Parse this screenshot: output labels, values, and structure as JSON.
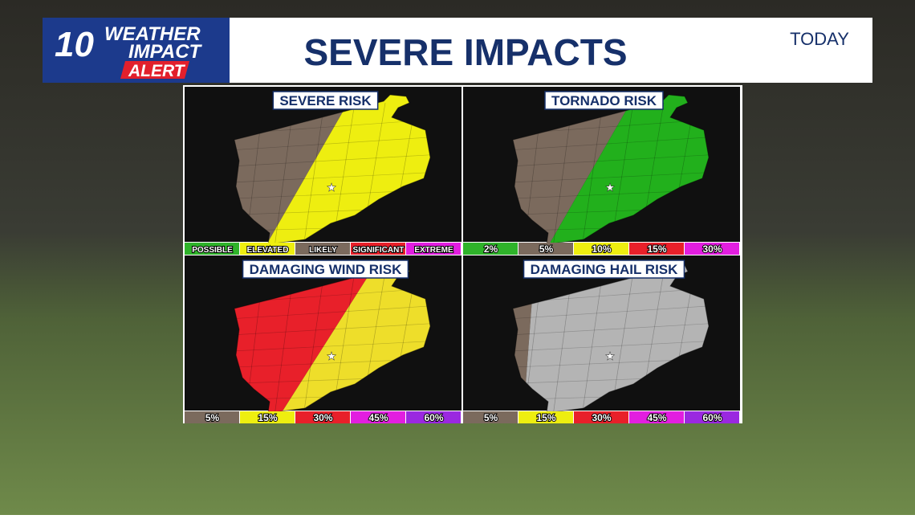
{
  "logo": {
    "number": "10",
    "line1": "WEATHER",
    "line2": "IMPACT",
    "line3": "ALERT"
  },
  "header": {
    "title": "SEVERE IMPACTS",
    "when": "TODAY"
  },
  "panels": [
    {
      "title": "SEVERE RISK",
      "map_colors": [
        "#7b6a5d",
        "#eeee10"
      ],
      "legend": [
        {
          "label": "POSSIBLE",
          "color": "#2fb32a"
        },
        {
          "label": "ELEVATED",
          "color": "#eeee10"
        },
        {
          "label": "LIKELY",
          "color": "#7b6a5d"
        },
        {
          "label": "SIGNIFICANT",
          "color": "#e8202a"
        },
        {
          "label": "EXTREME",
          "color": "#e21ee0"
        }
      ]
    },
    {
      "title": "TORNADO RISK",
      "map_colors": [
        "#7b6a5d",
        "#22b01c"
      ],
      "legend": [
        {
          "label": "2%",
          "color": "#2fb32a"
        },
        {
          "label": "5%",
          "color": "#7b6a5d"
        },
        {
          "label": "10%",
          "color": "#eeee10"
        },
        {
          "label": "15%",
          "color": "#e8202a"
        },
        {
          "label": "30%",
          "color": "#e21ee0"
        }
      ]
    },
    {
      "title": "DAMAGING WIND RISK",
      "map_colors": [
        "#e8202a",
        "#eede2a"
      ],
      "legend": [
        {
          "label": "5%",
          "color": "#7b6a5d"
        },
        {
          "label": "15%",
          "color": "#eeee10"
        },
        {
          "label": "30%",
          "color": "#e8202a"
        },
        {
          "label": "45%",
          "color": "#e21ee0"
        },
        {
          "label": "60%",
          "color": "#9a28e0"
        }
      ]
    },
    {
      "title": "DAMAGING HAIL RISK",
      "map_colors": [
        "#7b6a5d",
        "#b4b4b4"
      ],
      "legend": [
        {
          "label": "5%",
          "color": "#7b6a5d"
        },
        {
          "label": "15%",
          "color": "#eeee10"
        },
        {
          "label": "30%",
          "color": "#e8202a"
        },
        {
          "label": "45%",
          "color": "#e21ee0"
        },
        {
          "label": "60%",
          "color": "#9a28e0"
        }
      ]
    }
  ]
}
